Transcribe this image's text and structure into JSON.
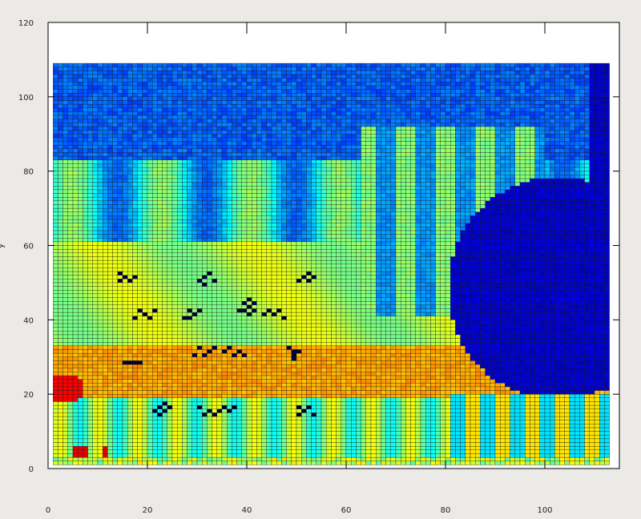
{
  "chart_data": {
    "type": "heatmap",
    "title": "",
    "xlabel": "",
    "ylabel": "y",
    "xlim": [
      0,
      115
    ],
    "ylim": [
      0,
      120
    ],
    "x_ticks": [
      0,
      20,
      40,
      60,
      80,
      100
    ],
    "y_ticks": [
      0,
      20,
      40,
      60,
      80,
      100,
      120
    ],
    "x_tick_labels": [
      "0",
      "20",
      "40",
      "60",
      "80",
      "100"
    ],
    "y_tick_labels": [
      "0",
      "20",
      "40",
      "60",
      "80",
      "100",
      "120"
    ],
    "grid": {
      "x_start": 1,
      "x_end": 113,
      "y_start": 1,
      "y_end": 109,
      "cell": 1
    },
    "value_range": [
      0,
      1
    ],
    "colormap": [
      "#00007f",
      "#0000ff",
      "#007fff",
      "#00ffff",
      "#7fff7f",
      "#ffff00",
      "#ff7f00",
      "#ff0000",
      "#7f0000"
    ],
    "cell_border_color": "#1a1a1a",
    "marker_color": "#000033",
    "pattern_description": [
      {
        "region": "top band y>82",
        "level": 0.2
      },
      {
        "region": "vertical stripes x 60-110, y 45-90",
        "level": "alternating 0.2 / 0.5"
      },
      {
        "region": "dark blob right x>85, y 20-75",
        "level": 0.05
      },
      {
        "region": "central green area x 10-60, y 15-60",
        "level": 0.6
      },
      {
        "region": "yellow band y 18-32",
        "level": 0.72
      },
      {
        "region": "red spots near x 2-12, y 0-25",
        "level": 0.9
      },
      {
        "region": "bottom stripes y<20, x>80",
        "level": "alternating 0.3 / 0.65"
      }
    ],
    "markers": [
      [
        14,
        52
      ],
      [
        16,
        50
      ],
      [
        15,
        51
      ],
      [
        17,
        51
      ],
      [
        14,
        50
      ],
      [
        18,
        42
      ],
      [
        20,
        40
      ],
      [
        19,
        41
      ],
      [
        21,
        42
      ],
      [
        17,
        40
      ],
      [
        16,
        28
      ],
      [
        17,
        28
      ],
      [
        18,
        28
      ],
      [
        15,
        28
      ],
      [
        22,
        16
      ],
      [
        23,
        15
      ],
      [
        21,
        15
      ],
      [
        24,
        16
      ],
      [
        22,
        14
      ],
      [
        23,
        17
      ],
      [
        32,
        52
      ],
      [
        30,
        50
      ],
      [
        31,
        51
      ],
      [
        33,
        50
      ],
      [
        31,
        49
      ],
      [
        28,
        42
      ],
      [
        29,
        41
      ],
      [
        27,
        40
      ],
      [
        30,
        42
      ],
      [
        28,
        40
      ],
      [
        30,
        32
      ],
      [
        32,
        31
      ],
      [
        31,
        30
      ],
      [
        33,
        32
      ],
      [
        29,
        30
      ],
      [
        30,
        16
      ],
      [
        32,
        15
      ],
      [
        34,
        15
      ],
      [
        36,
        15
      ],
      [
        31,
        14
      ],
      [
        33,
        14
      ],
      [
        35,
        16
      ],
      [
        37,
        16
      ],
      [
        36,
        32
      ],
      [
        38,
        31
      ],
      [
        37,
        30
      ],
      [
        35,
        31
      ],
      [
        39,
        30
      ],
      [
        39,
        44
      ],
      [
        40,
        43
      ],
      [
        40,
        45
      ],
      [
        41,
        44
      ],
      [
        38,
        42
      ],
      [
        39,
        42
      ],
      [
        41,
        42
      ],
      [
        40,
        41
      ],
      [
        44,
        42
      ],
      [
        46,
        42
      ],
      [
        45,
        41
      ],
      [
        43,
        41
      ],
      [
        47,
        40
      ],
      [
        48,
        32
      ],
      [
        49,
        31
      ],
      [
        49,
        30
      ],
      [
        49,
        29
      ],
      [
        50,
        31
      ],
      [
        50,
        50
      ],
      [
        52,
        50
      ],
      [
        53,
        51
      ],
      [
        51,
        51
      ],
      [
        52,
        52
      ],
      [
        50,
        16
      ],
      [
        52,
        16
      ],
      [
        51,
        15
      ],
      [
        53,
        14
      ],
      [
        50,
        14
      ]
    ]
  }
}
